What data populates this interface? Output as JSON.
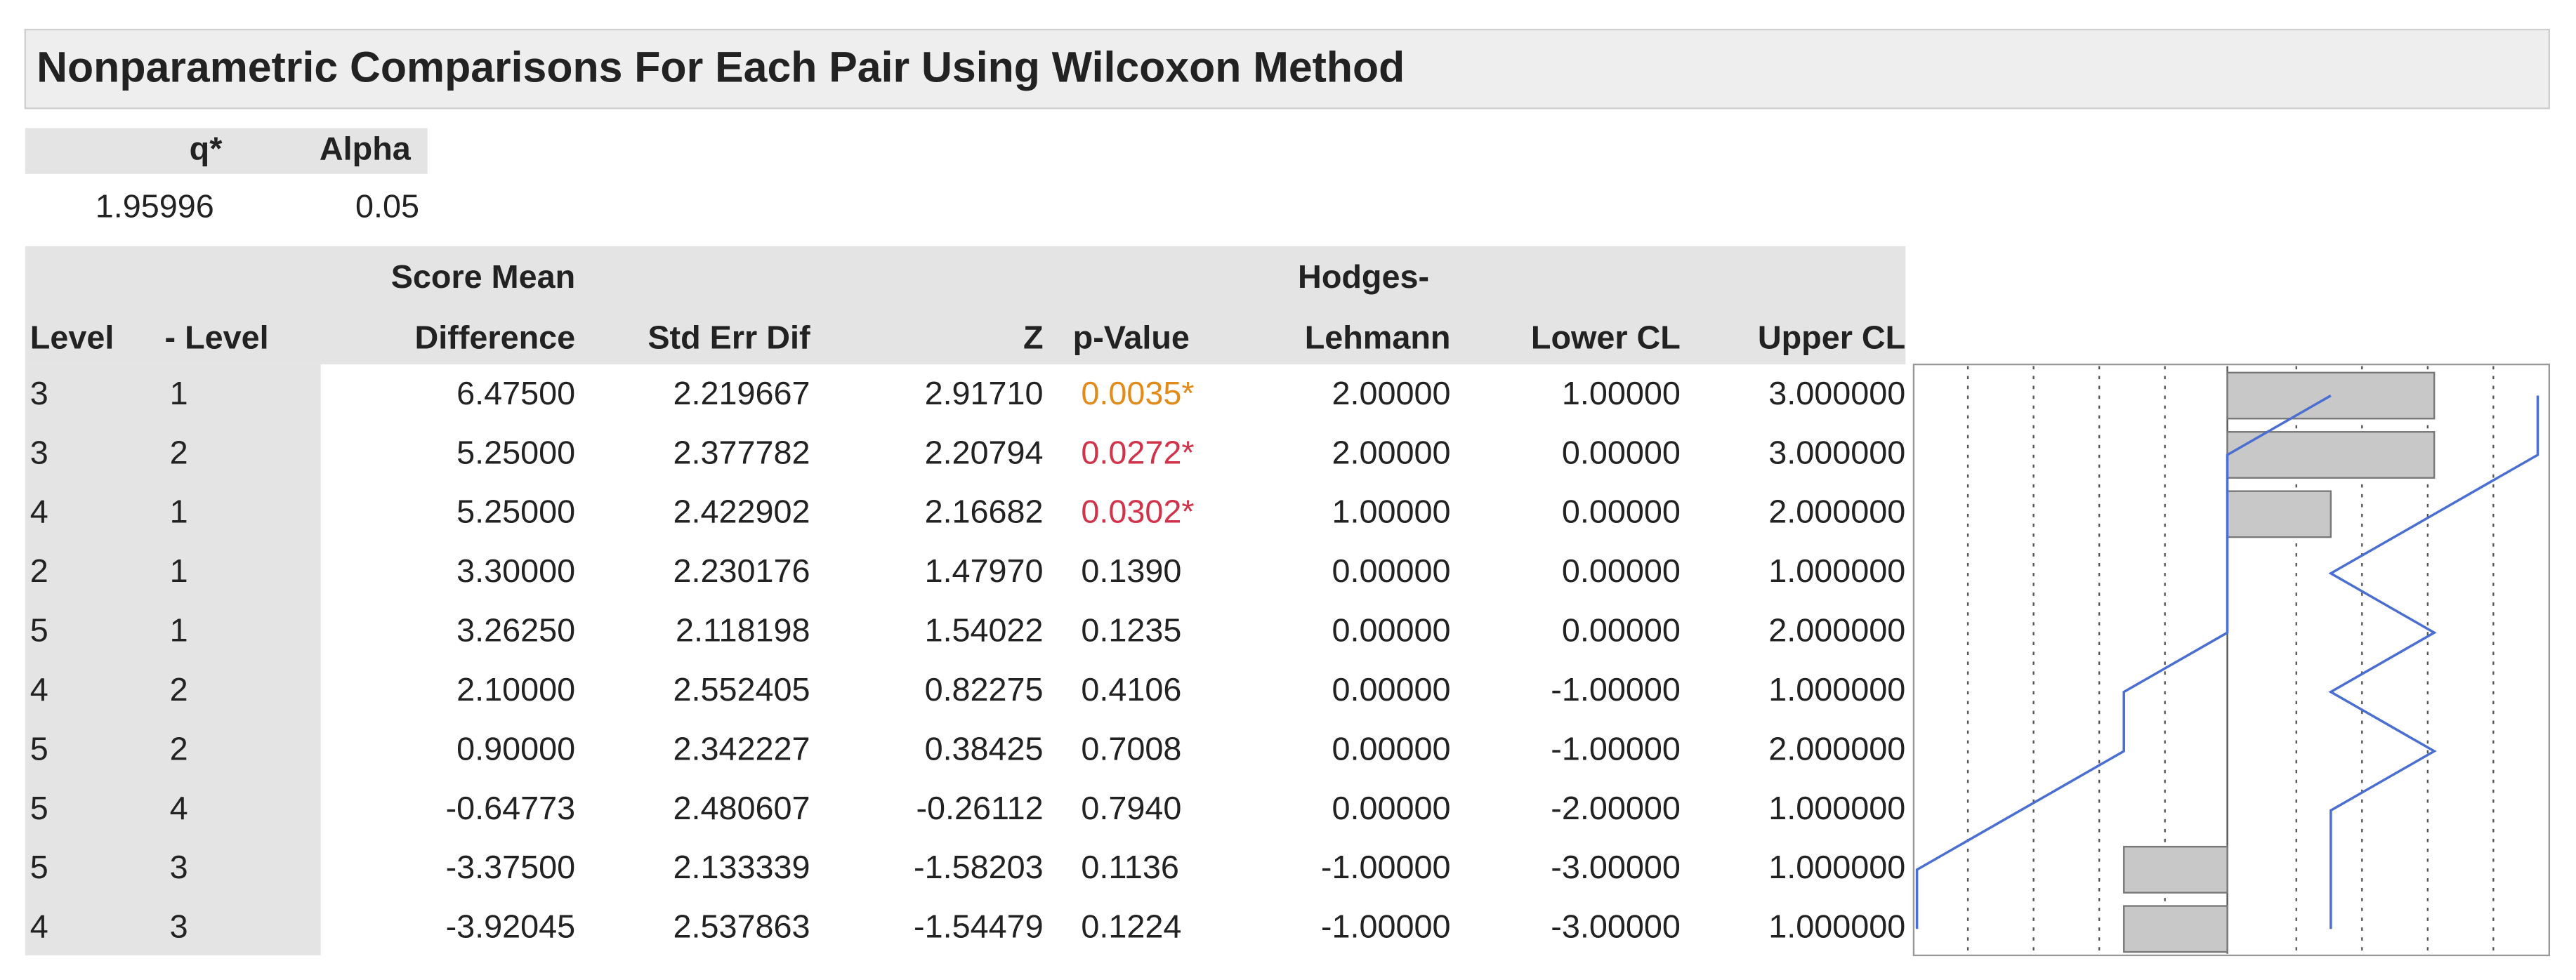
{
  "header": {
    "title": "Nonparametric Comparisons For Each Pair Using Wilcoxon Method"
  },
  "params": {
    "headers": [
      "q*",
      "Alpha"
    ],
    "values": [
      "1.95996",
      "0.05"
    ]
  },
  "table": {
    "columns": [
      [
        "Level"
      ],
      [
        "- Level"
      ],
      [
        "Score Mean",
        "Difference"
      ],
      [
        "Std Err Dif"
      ],
      [
        "Z"
      ],
      [
        "p-Value"
      ],
      [
        "Hodges-",
        "Lehmann"
      ],
      [
        "Lower CL"
      ],
      [
        "Upper CL"
      ]
    ],
    "rows": [
      [
        "3",
        "1",
        "6.47500",
        "2.219667",
        "2.91710",
        "0.0035*",
        "2.00000",
        "1.00000",
        "3.000000"
      ],
      [
        "3",
        "2",
        "5.25000",
        "2.377782",
        "2.20794",
        "0.0272*",
        "2.00000",
        "0.00000",
        "3.000000"
      ],
      [
        "4",
        "1",
        "5.25000",
        "2.422902",
        "2.16682",
        "0.0302*",
        "1.00000",
        "0.00000",
        "2.000000"
      ],
      [
        "2",
        "1",
        "3.30000",
        "2.230176",
        "1.47970",
        "0.1390",
        "0.00000",
        "0.00000",
        "1.000000"
      ],
      [
        "5",
        "1",
        "3.26250",
        "2.118198",
        "1.54022",
        "0.1235",
        "0.00000",
        "0.00000",
        "2.000000"
      ],
      [
        "4",
        "2",
        "2.10000",
        "2.552405",
        "0.82275",
        "0.4106",
        "0.00000",
        "-1.00000",
        "1.000000"
      ],
      [
        "5",
        "2",
        "0.90000",
        "2.342227",
        "0.38425",
        "0.7008",
        "0.00000",
        "-1.00000",
        "2.000000"
      ],
      [
        "5",
        "4",
        "-0.64773",
        "2.480607",
        "-0.26112",
        "0.7940",
        "0.00000",
        "-2.00000",
        "1.000000"
      ],
      [
        "5",
        "3",
        "-3.37500",
        "2.133339",
        "-1.58203",
        "0.1136",
        "-1.00000",
        "-3.00000",
        "1.000000"
      ],
      [
        "4",
        "3",
        "-3.92045",
        "2.537863",
        "-1.54479",
        "0.1224",
        "-1.00000",
        "-3.00000",
        "1.000000"
      ]
    ]
  }
}
